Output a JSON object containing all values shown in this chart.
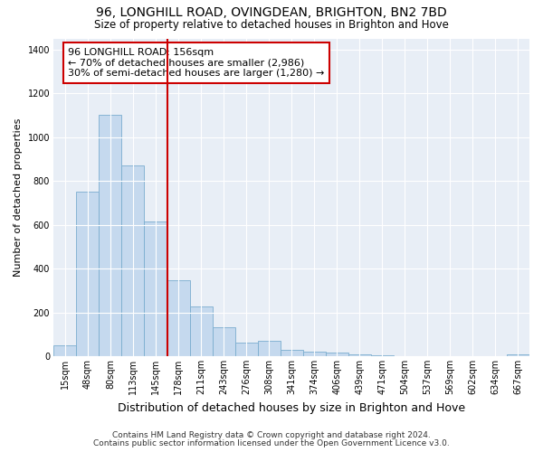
{
  "title": "96, LONGHILL ROAD, OVINGDEAN, BRIGHTON, BN2 7BD",
  "subtitle": "Size of property relative to detached houses in Brighton and Hove",
  "xlabel": "Distribution of detached houses by size in Brighton and Hove",
  "ylabel": "Number of detached properties",
  "footnote1": "Contains HM Land Registry data © Crown copyright and database right 2024.",
  "footnote2": "Contains public sector information licensed under the Open Government Licence v3.0.",
  "categories": [
    "15sqm",
    "48sqm",
    "80sqm",
    "113sqm",
    "145sqm",
    "178sqm",
    "211sqm",
    "243sqm",
    "276sqm",
    "308sqm",
    "341sqm",
    "374sqm",
    "406sqm",
    "439sqm",
    "471sqm",
    "504sqm",
    "537sqm",
    "569sqm",
    "602sqm",
    "634sqm",
    "667sqm"
  ],
  "values": [
    50,
    750,
    1100,
    870,
    615,
    345,
    225,
    130,
    62,
    70,
    30,
    20,
    15,
    8,
    3,
    1,
    0,
    0,
    0,
    0,
    10
  ],
  "bar_color": "#c5d9ee",
  "bar_edgecolor": "#7aadcf",
  "vline_x": 4.5,
  "vline_color": "#cc0000",
  "annotation_text": "96 LONGHILL ROAD: 156sqm\n← 70% of detached houses are smaller (2,986)\n30% of semi-detached houses are larger (1,280) →",
  "annotation_box_facecolor": "#ffffff",
  "annotation_box_edgecolor": "#cc0000",
  "ylim": [
    0,
    1450
  ],
  "yticks": [
    0,
    200,
    400,
    600,
    800,
    1000,
    1200,
    1400
  ],
  "fig_bg_color": "#ffffff",
  "plot_bg_color": "#e8eef6",
  "grid_color": "#ffffff",
  "title_fontsize": 10,
  "subtitle_fontsize": 8.5,
  "xlabel_fontsize": 9,
  "ylabel_fontsize": 8,
  "tick_fontsize": 7,
  "annotation_fontsize": 8,
  "footnote_fontsize": 6.5
}
